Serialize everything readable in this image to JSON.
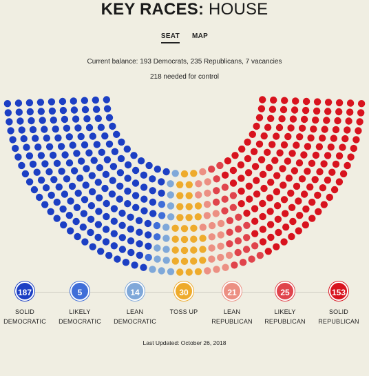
{
  "header": {
    "title_bold": "KEY RACES:",
    "title_rest": "HOUSE"
  },
  "tabs": [
    {
      "label": "SEAT",
      "active": true
    },
    {
      "label": "MAP",
      "active": false
    }
  ],
  "summary": {
    "balance": "Current balance: 193 Democrats, 235 Republicans, 7 vacancies",
    "needed": "218 needed for control"
  },
  "chart_data": {
    "type": "hemicycle",
    "total_seats": 435,
    "categories": [
      {
        "name": "SOLID DEMOCRATIC",
        "line1": "SOLID",
        "line2": "DEMOCRATIC",
        "value": 187,
        "color": "#1c3fc4"
      },
      {
        "name": "LIKELY DEMOCRATIC",
        "line1": "LIKELY",
        "line2": "DEMOCRATIC",
        "value": 5,
        "color": "#3f6ed8"
      },
      {
        "name": "LEAN DEMOCRATIC",
        "line1": "LEAN",
        "line2": "DEMOCRATIC",
        "value": 14,
        "color": "#7fa8d9"
      },
      {
        "name": "TOSS UP",
        "line1": "TOSS UP",
        "line2": "",
        "value": 30,
        "color": "#eeab2c"
      },
      {
        "name": "LEAN REPUBLICAN",
        "line1": "LEAN",
        "line2": "REPUBLICAN",
        "value": 21,
        "color": "#ec9083"
      },
      {
        "name": "LIKELY REPUBLICAN",
        "line1": "LIKELY",
        "line2": "REPUBLICAN",
        "value": 25,
        "color": "#e0444c"
      },
      {
        "name": "SOLID REPUBLICAN",
        "line1": "SOLID",
        "line2": "REPUBLICAN",
        "value": 153,
        "color": "#d8131e"
      }
    ]
  },
  "footer": {
    "updated": "Last Updated: October 26, 2018"
  }
}
